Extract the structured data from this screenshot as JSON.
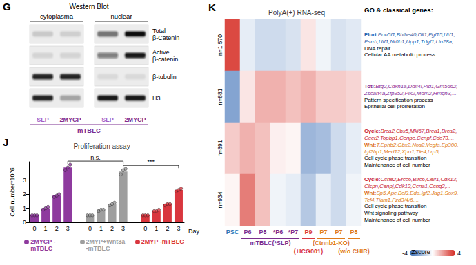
{
  "blot": {
    "panel": "G",
    "title": "Western Blot",
    "fractions": [
      "cytoplasma",
      "nuclear"
    ],
    "lanes": [
      {
        "label": "SLP",
        "color": "#a45ec4"
      },
      {
        "label": "2MYCP",
        "color": "#7b2d8e"
      },
      {
        "label": "SLP",
        "color": "#a45ec4"
      },
      {
        "label": "2MYCP",
        "color": "#7b2d8e"
      }
    ],
    "group": {
      "label": "mTBLC",
      "color": "#7b2d8e"
    },
    "rows": [
      {
        "label": "Total β-Catenin",
        "bands": [
          0.15,
          0.12,
          0.55,
          1.0
        ]
      },
      {
        "label": "Active β-catenin",
        "bands": [
          0.1,
          0.1,
          0.5,
          0.95
        ]
      },
      {
        "label": "β-tubulin",
        "bands": [
          0.9,
          0.9,
          0.08,
          0.08
        ]
      },
      {
        "label": "H3",
        "bands": [
          0.9,
          0.3,
          0.95,
          0.95
        ]
      }
    ]
  },
  "chart_data": [
    {
      "panel": "J",
      "type": "bar",
      "title": "Proliferation assay",
      "x_label": "Day",
      "y_label": "Cell number*10^6",
      "categories": [
        "0",
        "1",
        "2",
        "3",
        null,
        "0",
        "1",
        "2",
        "3",
        null,
        "0",
        "1",
        "2",
        "3"
      ],
      "series": [
        {
          "name": "2MYCP -mTBLC",
          "color": "#8e3a9e",
          "values": [
            0.5,
            1.0,
            1.9,
            3.9,
            null,
            null,
            null,
            null,
            null,
            null,
            null,
            null,
            null,
            null
          ],
          "replicates": [
            [
              0.5,
              0.5,
              0.5
            ],
            [
              0.9,
              1.0,
              1.1
            ],
            [
              1.8,
              1.9,
              2.0
            ],
            [
              3.7,
              3.9,
              4.1
            ],
            null,
            null,
            null,
            null,
            null,
            null,
            null,
            null,
            null,
            null
          ]
        },
        {
          "name": "2MYP+Wnt3a -mTBLC",
          "color": "#9e9e9e",
          "values": [
            null,
            null,
            null,
            null,
            null,
            0.5,
            0.9,
            1.3,
            3.6,
            null,
            null,
            null,
            null,
            null
          ],
          "replicates": [
            null,
            null,
            null,
            null,
            null,
            [
              0.5,
              0.5,
              0.5
            ],
            [
              0.8,
              0.9,
              0.9
            ],
            [
              1.2,
              1.3,
              1.4
            ],
            [
              3.4,
              3.7,
              3.8
            ],
            null,
            null,
            null,
            null,
            null
          ]
        },
        {
          "name": "2MYP -mTBLC",
          "color": "#d9363e",
          "values": [
            null,
            null,
            null,
            null,
            null,
            null,
            null,
            null,
            null,
            null,
            0.5,
            0.8,
            1.3,
            2.3
          ],
          "replicates": [
            null,
            null,
            null,
            null,
            null,
            null,
            null,
            null,
            null,
            null,
            [
              0.5,
              0.5,
              0.5
            ],
            [
              0.8,
              0.8,
              0.9
            ],
            [
              1.2,
              1.3,
              1.3
            ],
            [
              2.2,
              2.3,
              2.4
            ]
          ]
        }
      ],
      "ylim": [
        0,
        4.3
      ],
      "yticks": [
        0,
        1,
        2,
        3
      ],
      "grid": false,
      "marker": "circle",
      "annotations": [
        {
          "text": "n.s.",
          "between": [
            "2MYCP -mTBLC",
            "2MYP+Wnt3a -mTBLC"
          ],
          "day": "3"
        },
        {
          "text": "***",
          "between": [
            "2MYP+Wnt3a -mTBLC",
            "2MYP -mTBLC"
          ],
          "day": "3"
        }
      ]
    },
    {
      "panel": "K",
      "type": "heatmap",
      "title": "PolyA(+) RNA-seq",
      "side_title": "GO & classical genes:",
      "columns": [
        {
          "label": "PSC",
          "color": "#2e75b6"
        },
        {
          "label": "P6",
          "color": "#7b2d8e",
          "group": "mTBLC(*SLP)"
        },
        {
          "label": "P8",
          "color": "#7b2d8e",
          "group": "mTBLC(*SLP)"
        },
        {
          "label": "*P6",
          "color": "#7b2d8e",
          "group": "mTBLC(*SLP)"
        },
        {
          "label": "*P7",
          "color": "#7b2d8e",
          "group": "mTBLC(*SLP)"
        },
        {
          "label": "P9",
          "color": "#d9363e",
          "group": "(+ICG001)"
        },
        {
          "label": "P7",
          "color": "#e07b1a",
          "group": "(Ctnnb1-KO)"
        },
        {
          "label": "P7",
          "color": "#e07b1a",
          "group": "(Ctnnb1-KO)"
        },
        {
          "label": "P8",
          "color": "#e07b1a",
          "group": "(w/o CHIR)"
        }
      ],
      "groups": [
        {
          "text": "mTBLC(*SLP)",
          "color": "#7b2d8e"
        },
        {
          "text": "(+ICG001)",
          "color": "#d9363e"
        },
        {
          "text": "(Ctnnb1-KO)",
          "color": "#e07b1a"
        },
        {
          "text": "(w/o CHIR)",
          "color": "#e07b1a"
        }
      ],
      "rows": [
        {
          "label": "n=1,570",
          "sets": [
            {
              "term": "Pluri:",
              "color": "#1f5ea8",
              "genes": [
                "Pou5f1,Bhlhe40,Dll1,Fgf15,Utf1,",
                "Esrrb,Utf1,Nr0b1,Upp1,Tdgf1,Lin28a,..."
              ]
            }
          ],
          "processes": [
            "DNA repair",
            "Cellular AA metabolic process"
          ]
        },
        {
          "label": "n=881",
          "sets": [
            {
              "term": "Toti:",
              "color": "#8b2f97",
              "genes": [
                "Btg2,Cdkn1a,Ddit4l,Pid1,Gm5662,",
                "Zscan4a,Zfp352,Plk2,Mdm2,Hmgn3,..."
              ]
            }
          ],
          "processes": [
            "Pattern specification process",
            "Epithelial cell proliferation"
          ]
        },
        {
          "label": "n=891",
          "sets": [
            {
              "term": "Cycle:",
              "color": "#c8202f",
              "genes": [
                "Brca2,Cbx5,Mki67,Brca1,Brca2,",
                "Cecr2,Topbp1,Cenpe,Cenpf,Cdc73,..."
              ]
            },
            {
              "term": "Wnt:",
              "color": "#e07b1a",
              "genes": [
                "T,Ephb2,Gbx2,Nos2,Vegfa,Ep300,",
                "Igf2bp1,Med12,Xpo1,Tle4,Lrp5,..."
              ]
            }
          ],
          "processes": [
            "Cell cycle phase transition",
            "Maintenance of cell number"
          ]
        },
        {
          "label": "n=934",
          "sets": [
            {
              "term": "Cycle:",
              "color": "#c8202f",
              "genes": [
                "Ccne2,Ercc6,Birc6,Celf1,Cdk13,",
                "Clspn,Cenpj,Cdk12,Ccna1,Ccng2,..."
              ]
            },
            {
              "term": "Wnt:",
              "color": "#e07b1a",
              "genes": [
                "Sp5,Apc,Bcl9,Eda,Igf2,Jag1,Sox9,",
                "Tcf4,Tiam1,Fzd3/4/6,..."
              ]
            }
          ],
          "processes": [
            "Cell cycle phase transition",
            "Wnt signaling pathway",
            "Maintenance of cell number"
          ]
        }
      ],
      "cells": [
        [
          3.5,
          -0.5,
          -1.0,
          -1.0,
          -0.8,
          0.5,
          -0.3,
          -0.8,
          -0.6
        ],
        [
          -2.5,
          0.5,
          1.5,
          1.5,
          1.2,
          1.5,
          1.0,
          1.0,
          0.8
        ],
        [
          1.0,
          1.5,
          1.2,
          0.3,
          0.2,
          -2.0,
          -1.8,
          -1.0,
          -0.5
        ],
        [
          0.2,
          2.5,
          1.2,
          -0.3,
          -0.5,
          -1.5,
          -0.5,
          -1.0,
          -0.3
        ]
      ],
      "colorbar": {
        "range": [
          -4,
          4
        ],
        "ticks": [
          -4,
          4
        ],
        "label": "Zscore"
      }
    }
  ]
}
